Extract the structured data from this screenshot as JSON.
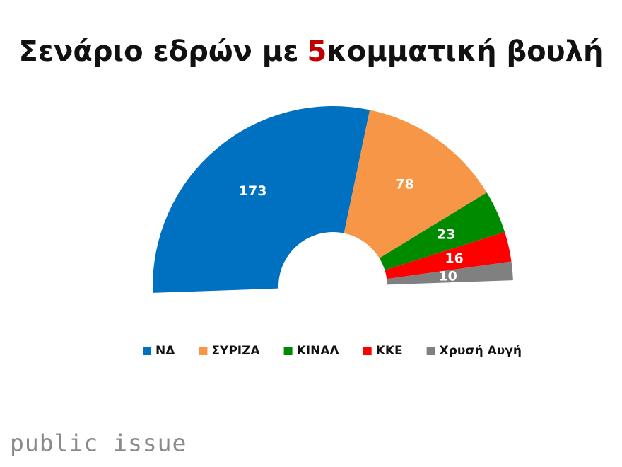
{
  "chart_data": {
    "type": "half-donut",
    "title": [
      "Σενάριο εδρών με",
      "5",
      "κομματική βουλή"
    ],
    "title_highlight_color": "#c00000",
    "categories": [
      "ΝΔ",
      "ΣΥΡΙΖΑ",
      "ΚΙΝΑΛ",
      "ΚΚΕ",
      "Χρυσή Αυγή"
    ],
    "values": [
      173,
      78,
      23,
      16,
      10
    ],
    "colors": [
      "#0070c0",
      "#f79646",
      "#008a00",
      "#ff0000",
      "#808080"
    ],
    "legend": "bottom"
  },
  "footer": {
    "logo": "public issue"
  }
}
